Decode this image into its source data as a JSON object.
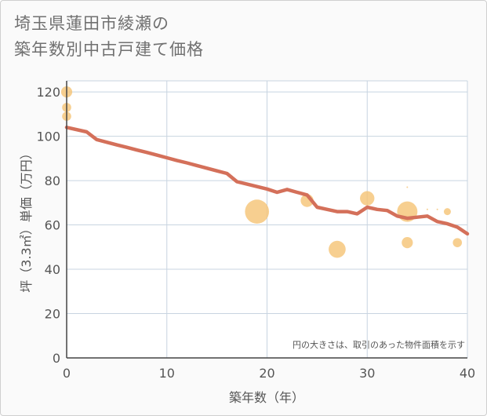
{
  "title_line1": "埼玉県蓮田市綾瀬の",
  "title_line2": "築年数別中古戸建て価格",
  "chart_data": {
    "type": "scatter",
    "title": "埼玉県蓮田市綾瀬の築年数別中古戸建て価格",
    "xlabel": "築年数（年）",
    "ylabel": "坪（3.3㎡）単価（万円）",
    "xlim": [
      0,
      40
    ],
    "ylim": [
      0,
      125
    ],
    "xticks": [
      0,
      10,
      20,
      30,
      40
    ],
    "yticks": [
      0,
      20,
      40,
      60,
      80,
      100,
      120
    ],
    "grid": true,
    "annotation": "円の大きさは、取引のあった物件面積を示す",
    "colors": {
      "bubble": "#f5c478",
      "line": "#d4705a",
      "grid": "#c8d4e0",
      "axis": "#444444"
    },
    "series": [
      {
        "name": "transactions",
        "kind": "bubble",
        "points": [
          {
            "x": 0,
            "y": 120,
            "size": 3
          },
          {
            "x": 0,
            "y": 113,
            "size": 2
          },
          {
            "x": 0,
            "y": 109,
            "size": 2
          },
          {
            "x": 19,
            "y": 66,
            "size": 14
          },
          {
            "x": 24,
            "y": 71,
            "size": 4
          },
          {
            "x": 27,
            "y": 49,
            "size": 7
          },
          {
            "x": 30,
            "y": 72,
            "size": 5
          },
          {
            "x": 34,
            "y": 66,
            "size": 10
          },
          {
            "x": 34,
            "y": 52,
            "size": 3
          },
          {
            "x": 34,
            "y": 77,
            "size": 0.05
          },
          {
            "x": 36,
            "y": 67,
            "size": 0.05
          },
          {
            "x": 37,
            "y": 67,
            "size": 0.05
          },
          {
            "x": 38,
            "y": 66,
            "size": 1.2
          },
          {
            "x": 39,
            "y": 52,
            "size": 2
          }
        ]
      },
      {
        "name": "trend",
        "kind": "line",
        "x": [
          0,
          2,
          3,
          4,
          5,
          6,
          7,
          8,
          9,
          10,
          11,
          12,
          13,
          14,
          15,
          16,
          17,
          18,
          19,
          20,
          21,
          22,
          23,
          24,
          25,
          26,
          27,
          28,
          29,
          30,
          31,
          32,
          33,
          34,
          35,
          36,
          37,
          38,
          39,
          40
        ],
        "y": [
          104,
          102,
          98.5,
          97.3,
          96.1,
          95,
          93.8,
          92.7,
          91.5,
          90.3,
          89.1,
          88,
          86.8,
          85.6,
          84.4,
          83.2,
          79.5,
          78.4,
          77.3,
          76.2,
          74.7,
          76,
          74.7,
          73.5,
          68,
          67,
          66,
          66,
          65,
          68,
          67,
          66.5,
          64,
          63,
          63.5,
          64,
          61.5,
          60.5,
          59,
          56
        ]
      }
    ]
  }
}
